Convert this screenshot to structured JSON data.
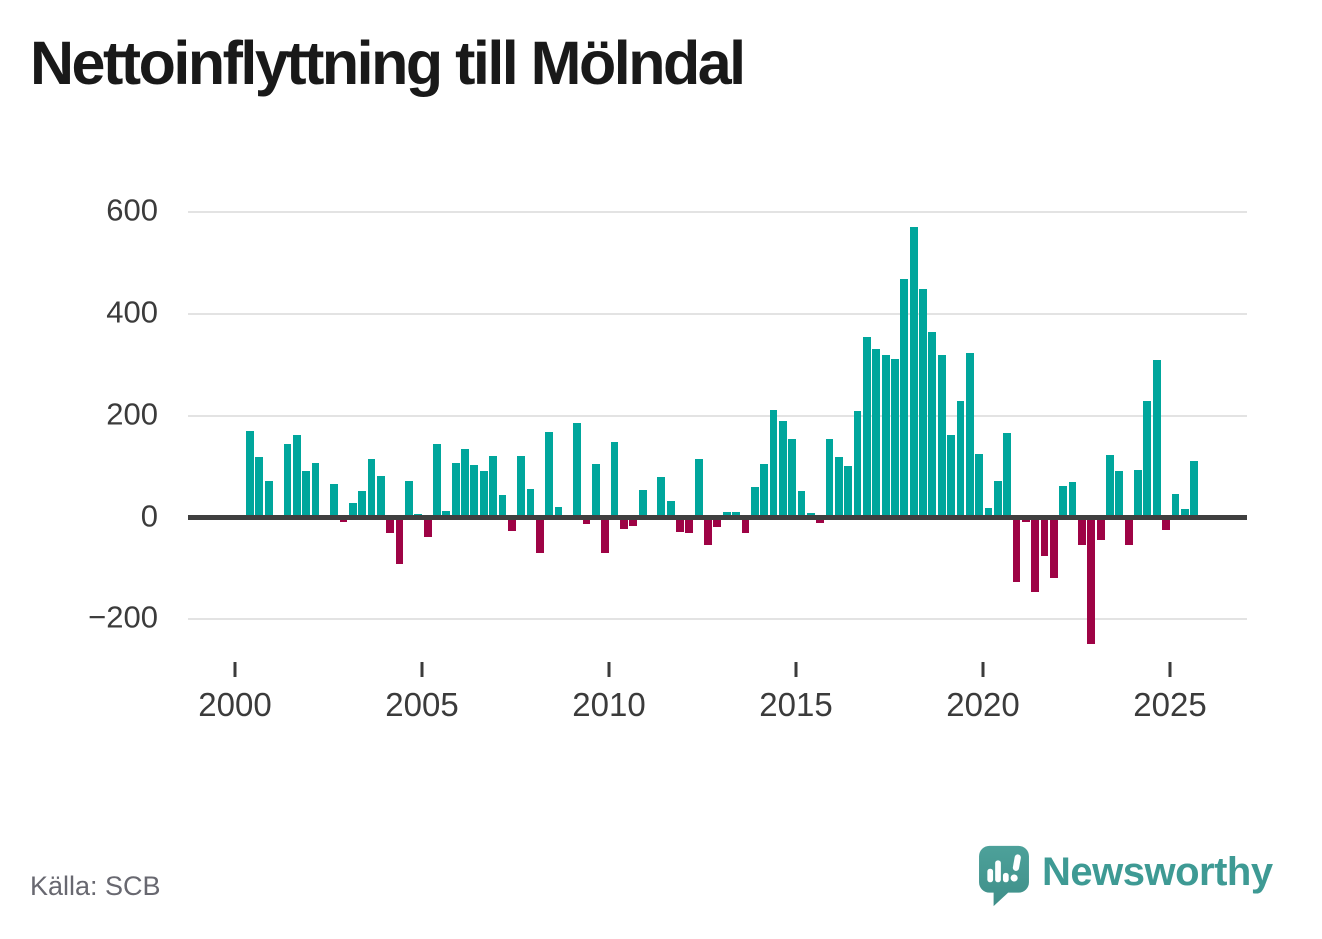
{
  "title": "Nettoinflyttning till Mölndal",
  "source": "Källa: SCB",
  "brand": {
    "name": "Newsworthy",
    "icon": "speech-bubble-bar-chart-icon"
  },
  "colors": {
    "positive_bar": "#00a69c",
    "negative_bar": "#9e0345",
    "axis": "#3f3f3f",
    "gridline": "#e3e3e3",
    "tick_text": "#3b3b3b",
    "title_text": "#191919",
    "source_text": "#686870",
    "brand_teal": "#3e9a94"
  },
  "chart_data": {
    "type": "bar",
    "title": "Nettoinflyttning till Mölndal",
    "frequency": "quarterly",
    "start": "2000-Q1",
    "end": "2025-Q3",
    "grid": "horizontal",
    "legend": "none",
    "ylim": [
      -270,
      630
    ],
    "y_ticks": [
      600,
      400,
      200,
      0,
      -200
    ],
    "x_tick_labels": [
      "2000",
      "2005",
      "2010",
      "2015",
      "2020",
      "2025"
    ],
    "values": [
      0,
      170,
      118,
      72,
      0,
      145,
      163,
      92,
      107,
      0,
      66,
      -8,
      28,
      53,
      116,
      82,
      -31,
      -91,
      72,
      7,
      -38,
      145,
      13,
      108,
      134,
      103,
      92,
      120,
      44,
      -27,
      120,
      56,
      -69,
      169,
      21,
      0,
      185,
      -12,
      106,
      -69,
      148,
      -23,
      -16,
      54,
      5,
      79,
      32,
      -28,
      -31,
      116,
      -54,
      -18,
      11,
      11,
      -31,
      59,
      106,
      212,
      190,
      155,
      53,
      8,
      -11,
      155,
      119,
      102,
      210,
      355,
      331,
      320,
      311,
      470,
      572,
      450,
      364,
      320,
      162,
      230,
      323,
      124,
      18,
      72,
      167,
      -127,
      -8,
      -147,
      -75,
      -118,
      62,
      70,
      -54,
      -248,
      -44,
      122,
      92,
      -54,
      93,
      230,
      310,
      -24,
      46,
      16,
      112
    ]
  }
}
